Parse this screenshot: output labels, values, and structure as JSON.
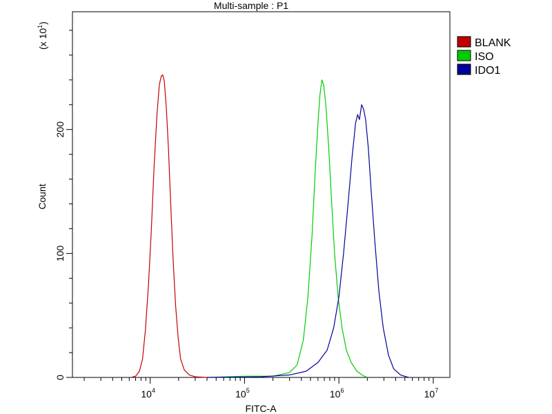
{
  "chart_data": {
    "type": "line",
    "title": "Multi-sample : P1",
    "xlabel": "FITC-A",
    "ylabel": "Count",
    "y_multiplier": "(x 10",
    "y_multiplier_exp": "1",
    "y_multiplier_close": ")",
    "x_scale": "log",
    "xlim": [
      1500,
      15000000
    ],
    "ylim": [
      0,
      295
    ],
    "x_ticks": [
      {
        "value": 10000,
        "base": "10",
        "exp": "4"
      },
      {
        "value": 100000,
        "base": "10",
        "exp": "5"
      },
      {
        "value": 1000000,
        "base": "10",
        "exp": "6"
      },
      {
        "value": 10000000,
        "base": "10",
        "exp": "7"
      }
    ],
    "y_ticks": [
      {
        "value": 0,
        "label": "0"
      },
      {
        "value": 100,
        "label": "100"
      },
      {
        "value": 200,
        "label": "200"
      }
    ],
    "grid": false,
    "legend_position": "top-right",
    "series": [
      {
        "name": "BLANK",
        "color": "#c00000",
        "points": [
          [
            6300,
            0
          ],
          [
            7000,
            1
          ],
          [
            7700,
            5
          ],
          [
            8300,
            15
          ],
          [
            8900,
            38
          ],
          [
            9600,
            75
          ],
          [
            10300,
            120
          ],
          [
            11000,
            170
          ],
          [
            11800,
            212
          ],
          [
            12500,
            236
          ],
          [
            13100,
            243
          ],
          [
            13600,
            244
          ],
          [
            14100,
            239
          ],
          [
            14800,
            218
          ],
          [
            15600,
            185
          ],
          [
            16500,
            140
          ],
          [
            17500,
            95
          ],
          [
            18600,
            58
          ],
          [
            19800,
            32
          ],
          [
            21000,
            15
          ],
          [
            23000,
            6
          ],
          [
            26000,
            2
          ],
          [
            30000,
            0.5
          ],
          [
            40000,
            0
          ]
        ]
      },
      {
        "name": "ISO",
        "color": "#00cc00",
        "points": [
          [
            40000,
            0
          ],
          [
            100000,
            1
          ],
          [
            200000,
            1
          ],
          [
            300000,
            4
          ],
          [
            360000,
            10
          ],
          [
            420000,
            30
          ],
          [
            470000,
            65
          ],
          [
            520000,
            115
          ],
          [
            560000,
            165
          ],
          [
            600000,
            205
          ],
          [
            630000,
            228
          ],
          [
            660000,
            240
          ],
          [
            690000,
            236
          ],
          [
            730000,
            218
          ],
          [
            780000,
            185
          ],
          [
            840000,
            140
          ],
          [
            900000,
            100
          ],
          [
            980000,
            65
          ],
          [
            1080000,
            40
          ],
          [
            1200000,
            22
          ],
          [
            1350000,
            12
          ],
          [
            1550000,
            5
          ],
          [
            1800000,
            1.5
          ],
          [
            2000000,
            0
          ]
        ]
      },
      {
        "name": "IDO1",
        "color": "#000099",
        "points": [
          [
            40000,
            0
          ],
          [
            150000,
            0.5
          ],
          [
            300000,
            2
          ],
          [
            450000,
            5
          ],
          [
            600000,
            12
          ],
          [
            750000,
            22
          ],
          [
            880000,
            40
          ],
          [
            1000000,
            65
          ],
          [
            1120000,
            100
          ],
          [
            1250000,
            140
          ],
          [
            1380000,
            178
          ],
          [
            1500000,
            205
          ],
          [
            1580000,
            212
          ],
          [
            1650000,
            208
          ],
          [
            1740000,
            220
          ],
          [
            1830000,
            216
          ],
          [
            1920000,
            208
          ],
          [
            2050000,
            185
          ],
          [
            2200000,
            150
          ],
          [
            2400000,
            110
          ],
          [
            2650000,
            70
          ],
          [
            2950000,
            40
          ],
          [
            3350000,
            18
          ],
          [
            3800000,
            7
          ],
          [
            4500000,
            2
          ],
          [
            5200000,
            0.5
          ],
          [
            5500000,
            0
          ]
        ]
      }
    ]
  }
}
